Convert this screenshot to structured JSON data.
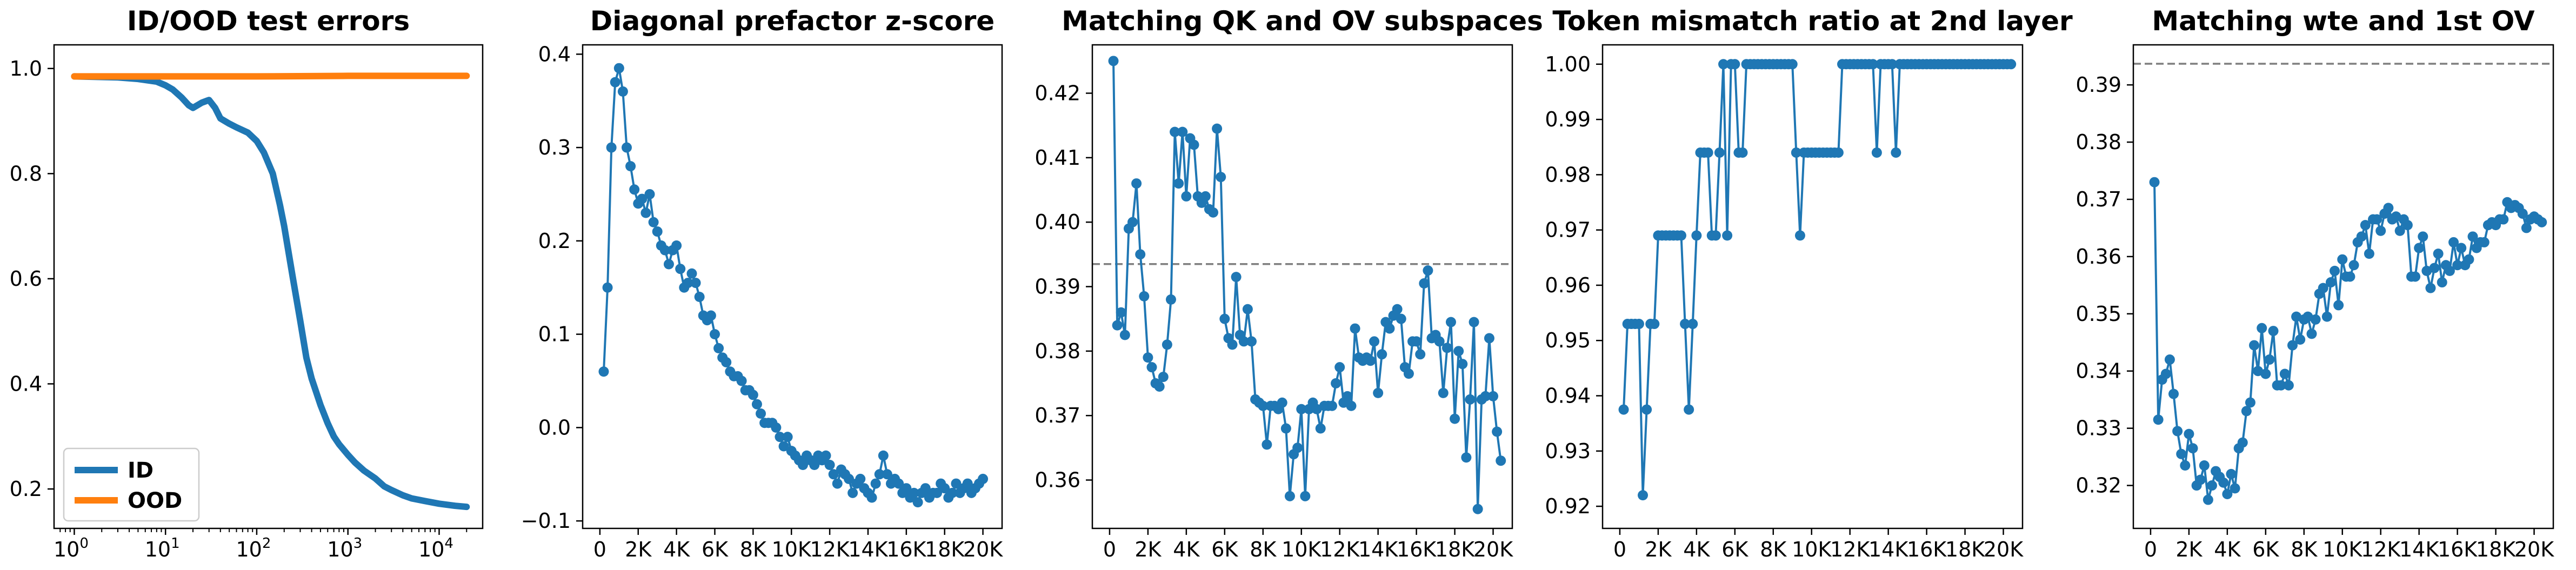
{
  "chart_data": [
    {
      "type": "line",
      "title": "ID/OOD test errors",
      "xscale": "log",
      "xlim": [
        0.6,
        30000
      ],
      "ylim": [
        0.125,
        1.045
      ],
      "x_ticks": [
        {
          "v": 1,
          "b": "10",
          "e": "0"
        },
        {
          "v": 10,
          "b": "10",
          "e": "1"
        },
        {
          "v": 100,
          "b": "10",
          "e": "2"
        },
        {
          "v": 1000,
          "b": "10",
          "e": "3"
        },
        {
          "v": 10000,
          "b": "10",
          "e": "4"
        }
      ],
      "y_ticks": [
        {
          "v": 0.2,
          "label": "0.2"
        },
        {
          "v": 0.4,
          "label": "0.4"
        },
        {
          "v": 0.6,
          "label": "0.6"
        },
        {
          "v": 0.8,
          "label": "0.8"
        },
        {
          "v": 1.0,
          "label": "1.0"
        }
      ],
      "legend": {
        "position": "lower-left"
      },
      "series": [
        {
          "name": "ID",
          "color": "#1f77b4",
          "x": [
            1,
            3,
            5,
            8,
            10,
            12,
            15,
            18,
            20,
            25,
            30,
            35,
            40,
            50,
            60,
            80,
            100,
            120,
            150,
            180,
            200,
            250,
            300,
            350,
            400,
            500,
            600,
            700,
            800,
            1000,
            1200,
            1500,
            2000,
            2500,
            3000,
            4000,
            5000,
            7000,
            10000,
            15000,
            20000
          ],
          "y": [
            0.985,
            0.983,
            0.98,
            0.975,
            0.968,
            0.96,
            0.945,
            0.93,
            0.925,
            0.935,
            0.94,
            0.925,
            0.905,
            0.895,
            0.888,
            0.878,
            0.862,
            0.84,
            0.8,
            0.74,
            0.7,
            0.6,
            0.52,
            0.45,
            0.41,
            0.36,
            0.325,
            0.3,
            0.285,
            0.265,
            0.25,
            0.235,
            0.22,
            0.205,
            0.198,
            0.188,
            0.182,
            0.177,
            0.172,
            0.168,
            0.166
          ]
        },
        {
          "name": "OOD",
          "color": "#ff7f0e",
          "x": [
            1,
            10,
            100,
            1000,
            10000,
            20000
          ],
          "y": [
            0.985,
            0.985,
            0.985,
            0.986,
            0.986,
            0.986
          ]
        }
      ]
    },
    {
      "type": "line",
      "title": "Diagonal prefactor z-score",
      "xlim": [
        -900,
        21000
      ],
      "ylim": [
        -0.108,
        0.41
      ],
      "x_ticks": [
        {
          "v": 0,
          "label": "0"
        },
        {
          "v": 2000,
          "label": "2K"
        },
        {
          "v": 4000,
          "label": "4K"
        },
        {
          "v": 6000,
          "label": "6K"
        },
        {
          "v": 8000,
          "label": "8K"
        },
        {
          "v": 10000,
          "label": "10K"
        },
        {
          "v": 12000,
          "label": "12K"
        },
        {
          "v": 14000,
          "label": "14K"
        },
        {
          "v": 16000,
          "label": "16K"
        },
        {
          "v": 18000,
          "label": "18K"
        },
        {
          "v": 20000,
          "label": "20K"
        }
      ],
      "y_ticks": [
        {
          "v": -0.1,
          "label": "−0.1"
        },
        {
          "v": 0.0,
          "label": "0.0"
        },
        {
          "v": 0.1,
          "label": "0.1"
        },
        {
          "v": 0.2,
          "label": "0.2"
        },
        {
          "v": 0.3,
          "label": "0.3"
        },
        {
          "v": 0.4,
          "label": "0.4"
        }
      ],
      "series": [
        {
          "color": "#1f77b4",
          "x_start": 200,
          "x_step": 200,
          "y": [
            0.06,
            0.15,
            0.3,
            0.37,
            0.385,
            0.36,
            0.3,
            0.28,
            0.255,
            0.24,
            0.245,
            0.23,
            0.25,
            0.22,
            0.21,
            0.195,
            0.19,
            0.175,
            0.19,
            0.195,
            0.17,
            0.15,
            0.155,
            0.165,
            0.155,
            0.14,
            0.12,
            0.115,
            0.12,
            0.1,
            0.085,
            0.075,
            0.07,
            0.06,
            0.055,
            0.055,
            0.05,
            0.04,
            0.04,
            0.035,
            0.025,
            0.015,
            0.005,
            0.005,
            0.005,
            0.0,
            -0.01,
            -0.02,
            -0.01,
            -0.025,
            -0.03,
            -0.035,
            -0.04,
            -0.03,
            -0.035,
            -0.04,
            -0.03,
            -0.035,
            -0.03,
            -0.04,
            -0.05,
            -0.06,
            -0.045,
            -0.05,
            -0.055,
            -0.07,
            -0.06,
            -0.055,
            -0.065,
            -0.07,
            -0.075,
            -0.06,
            -0.05,
            -0.03,
            -0.05,
            -0.06,
            -0.055,
            -0.06,
            -0.07,
            -0.065,
            -0.075,
            -0.07,
            -0.08,
            -0.07,
            -0.065,
            -0.075,
            -0.07,
            -0.07,
            -0.06,
            -0.065,
            -0.075,
            -0.07,
            -0.06,
            -0.07,
            -0.065,
            -0.06,
            -0.07,
            -0.065,
            -0.06,
            -0.055
          ]
        }
      ]
    },
    {
      "type": "line",
      "title": "Matching QK and OV subspaces",
      "xlim": [
        -900,
        21000
      ],
      "ylim": [
        0.3525,
        0.4275
      ],
      "x_ticks": [
        {
          "v": 0,
          "label": "0"
        },
        {
          "v": 2000,
          "label": "2K"
        },
        {
          "v": 4000,
          "label": "4K"
        },
        {
          "v": 6000,
          "label": "6K"
        },
        {
          "v": 8000,
          "label": "8K"
        },
        {
          "v": 10000,
          "label": "10K"
        },
        {
          "v": 12000,
          "label": "12K"
        },
        {
          "v": 14000,
          "label": "14K"
        },
        {
          "v": 16000,
          "label": "16K"
        },
        {
          "v": 18000,
          "label": "18K"
        },
        {
          "v": 20000,
          "label": "20K"
        }
      ],
      "y_ticks": [
        {
          "v": 0.36,
          "label": "0.36"
        },
        {
          "v": 0.37,
          "label": "0.37"
        },
        {
          "v": 0.38,
          "label": "0.38"
        },
        {
          "v": 0.39,
          "label": "0.39"
        },
        {
          "v": 0.4,
          "label": "0.40"
        },
        {
          "v": 0.41,
          "label": "0.41"
        },
        {
          "v": 0.42,
          "label": "0.42"
        }
      ],
      "hline": 0.3935,
      "series": [
        {
          "color": "#1f77b4",
          "x_start": 200,
          "x_step": 200,
          "y": [
            0.425,
            0.384,
            0.386,
            0.3825,
            0.399,
            0.4,
            0.406,
            0.395,
            0.3885,
            0.379,
            0.3775,
            0.375,
            0.3745,
            0.376,
            0.381,
            0.388,
            0.414,
            0.406,
            0.414,
            0.404,
            0.413,
            0.412,
            0.404,
            0.403,
            0.404,
            0.402,
            0.4015,
            0.4145,
            0.407,
            0.385,
            0.382,
            0.381,
            0.3915,
            0.3825,
            0.3815,
            0.3865,
            0.3815,
            0.3725,
            0.372,
            0.3715,
            0.3655,
            0.3715,
            0.3715,
            0.371,
            0.372,
            0.368,
            0.3575,
            0.364,
            0.365,
            0.371,
            0.3575,
            0.371,
            0.372,
            0.371,
            0.368,
            0.3715,
            0.3715,
            0.3715,
            0.375,
            0.3775,
            0.372,
            0.373,
            0.3715,
            0.3835,
            0.379,
            0.3785,
            0.379,
            0.3785,
            0.3815,
            0.3735,
            0.3795,
            0.3845,
            0.3835,
            0.3855,
            0.3865,
            0.385,
            0.3775,
            0.3765,
            0.3815,
            0.3815,
            0.3795,
            0.3905,
            0.3925,
            0.382,
            0.3825,
            0.3815,
            0.3735,
            0.3805,
            0.3845,
            0.3695,
            0.38,
            0.378,
            0.3635,
            0.3725,
            0.3845,
            0.3555,
            0.3725,
            0.373,
            0.382,
            0.373,
            0.3675,
            0.363
          ]
        }
      ]
    },
    {
      "type": "line",
      "title": "Token mismatch ratio at 2nd layer",
      "xlim": [
        -900,
        21000
      ],
      "ylim": [
        0.916,
        1.0035
      ],
      "x_ticks": [
        {
          "v": 0,
          "label": "0"
        },
        {
          "v": 2000,
          "label": "2K"
        },
        {
          "v": 4000,
          "label": "4K"
        },
        {
          "v": 6000,
          "label": "6K"
        },
        {
          "v": 8000,
          "label": "8K"
        },
        {
          "v": 10000,
          "label": "10K"
        },
        {
          "v": 12000,
          "label": "12K"
        },
        {
          "v": 14000,
          "label": "14K"
        },
        {
          "v": 16000,
          "label": "16K"
        },
        {
          "v": 18000,
          "label": "18K"
        },
        {
          "v": 20000,
          "label": "20K"
        }
      ],
      "y_ticks": [
        {
          "v": 0.92,
          "label": "0.92"
        },
        {
          "v": 0.93,
          "label": "0.93"
        },
        {
          "v": 0.94,
          "label": "0.94"
        },
        {
          "v": 0.95,
          "label": "0.95"
        },
        {
          "v": 0.96,
          "label": "0.96"
        },
        {
          "v": 0.97,
          "label": "0.97"
        },
        {
          "v": 0.98,
          "label": "0.98"
        },
        {
          "v": 0.99,
          "label": "0.99"
        },
        {
          "v": 1.0,
          "label": "1.00"
        }
      ],
      "series": [
        {
          "color": "#1f77b4",
          "x_start": 200,
          "x_step": 200,
          "y": [
            0.9375,
            0.953,
            0.953,
            0.953,
            0.953,
            0.922,
            0.9375,
            0.953,
            0.953,
            0.969,
            0.969,
            0.969,
            0.969,
            0.969,
            0.969,
            0.969,
            0.953,
            0.9375,
            0.953,
            0.969,
            0.984,
            0.984,
            0.984,
            0.969,
            0.969,
            0.984,
            1.0,
            0.969,
            1.0,
            1.0,
            0.984,
            0.984,
            1.0,
            1.0,
            1.0,
            1.0,
            1.0,
            1.0,
            1.0,
            1.0,
            1.0,
            1.0,
            1.0,
            1.0,
            1.0,
            0.984,
            0.969,
            0.984,
            0.984,
            0.984,
            0.984,
            0.984,
            0.984,
            0.984,
            0.984,
            0.984,
            0.984,
            1.0,
            1.0,
            1.0,
            1.0,
            1.0,
            1.0,
            1.0,
            1.0,
            1.0,
            0.984,
            1.0,
            1.0,
            1.0,
            1.0,
            0.984,
            1.0,
            1.0,
            1.0,
            1.0,
            1.0,
            1.0,
            1.0,
            1.0,
            1.0,
            1.0,
            1.0,
            1.0,
            1.0,
            1.0,
            1.0,
            1.0,
            1.0,
            1.0,
            1.0,
            1.0,
            1.0,
            1.0,
            1.0,
            1.0,
            1.0,
            1.0,
            1.0,
            1.0,
            1.0,
            1.0
          ]
        }
      ]
    },
    {
      "type": "line",
      "title": "Matching wte and 1st OV",
      "xlim": [
        -900,
        21000
      ],
      "ylim": [
        0.3125,
        0.397
      ],
      "x_ticks": [
        {
          "v": 0,
          "label": "0"
        },
        {
          "v": 2000,
          "label": "2K"
        },
        {
          "v": 4000,
          "label": "4K"
        },
        {
          "v": 6000,
          "label": "6K"
        },
        {
          "v": 8000,
          "label": "8K"
        },
        {
          "v": 10000,
          "label": "10K"
        },
        {
          "v": 12000,
          "label": "12K"
        },
        {
          "v": 14000,
          "label": "14K"
        },
        {
          "v": 16000,
          "label": "16K"
        },
        {
          "v": 18000,
          "label": "18K"
        },
        {
          "v": 20000,
          "label": "20K"
        }
      ],
      "y_ticks": [
        {
          "v": 0.32,
          "label": "0.32"
        },
        {
          "v": 0.33,
          "label": "0.33"
        },
        {
          "v": 0.34,
          "label": "0.34"
        },
        {
          "v": 0.35,
          "label": "0.35"
        },
        {
          "v": 0.36,
          "label": "0.36"
        },
        {
          "v": 0.37,
          "label": "0.37"
        },
        {
          "v": 0.38,
          "label": "0.38"
        },
        {
          "v": 0.39,
          "label": "0.39"
        }
      ],
      "hline": 0.3937,
      "series": [
        {
          "color": "#1f77b4",
          "x_start": 200,
          "x_step": 200,
          "y": [
            0.373,
            0.3315,
            0.3385,
            0.3395,
            0.342,
            0.336,
            0.3295,
            0.3255,
            0.3235,
            0.329,
            0.3265,
            0.32,
            0.321,
            0.3235,
            0.3175,
            0.32,
            0.3225,
            0.3215,
            0.3205,
            0.3185,
            0.322,
            0.3195,
            0.3265,
            0.3275,
            0.333,
            0.3345,
            0.3445,
            0.34,
            0.3475,
            0.3395,
            0.342,
            0.347,
            0.3375,
            0.3375,
            0.3395,
            0.3375,
            0.3445,
            0.3495,
            0.3455,
            0.349,
            0.3495,
            0.3465,
            0.349,
            0.3535,
            0.3545,
            0.3495,
            0.3555,
            0.3575,
            0.3515,
            0.3595,
            0.3565,
            0.3565,
            0.3585,
            0.3625,
            0.3635,
            0.3655,
            0.3605,
            0.3665,
            0.3665,
            0.3645,
            0.3675,
            0.3685,
            0.3665,
            0.367,
            0.3645,
            0.3665,
            0.3655,
            0.3565,
            0.3565,
            0.3615,
            0.3635,
            0.3575,
            0.3545,
            0.358,
            0.3605,
            0.3555,
            0.3585,
            0.3575,
            0.3625,
            0.3585,
            0.3615,
            0.3585,
            0.3595,
            0.3635,
            0.3615,
            0.3625,
            0.3625,
            0.3655,
            0.366,
            0.3655,
            0.3665,
            0.3665,
            0.3695,
            0.3685,
            0.369,
            0.3685,
            0.3675,
            0.365,
            0.3665,
            0.367,
            0.3665,
            0.366
          ]
        }
      ]
    }
  ]
}
